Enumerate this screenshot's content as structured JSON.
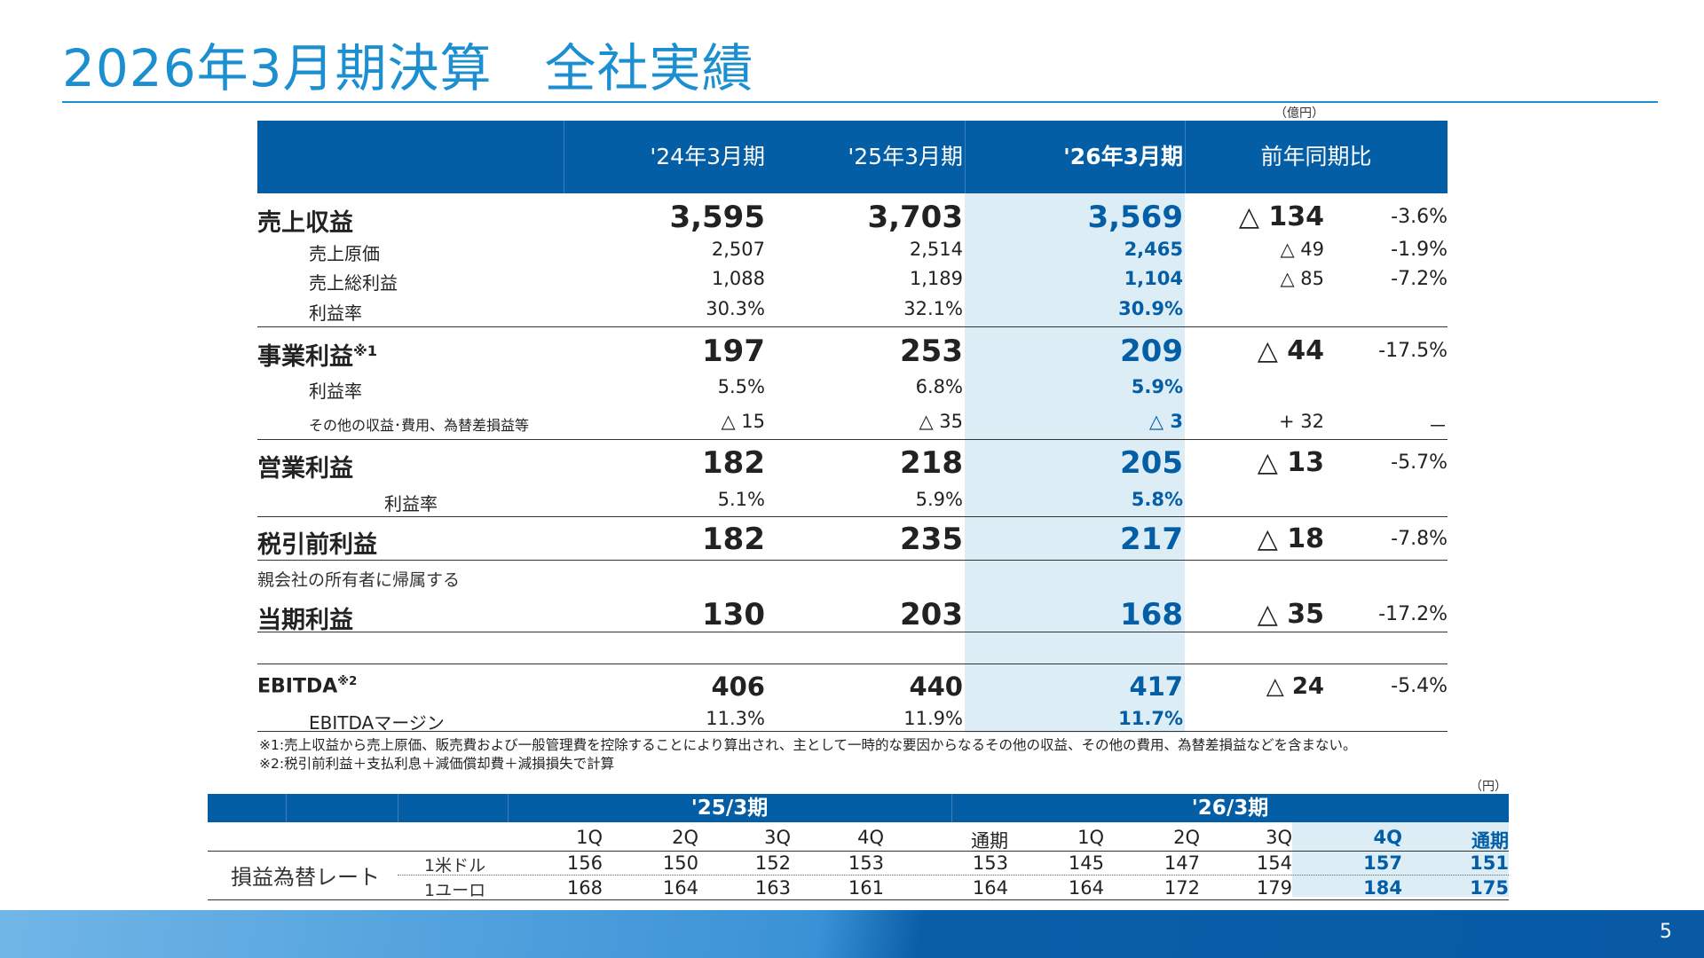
{
  "title": "2026年3月期決算　全社実績",
  "unit_main": "（億円）",
  "unit_fx": "（円）",
  "header": {
    "c1": "'24年3月期",
    "c2": "'25年3月期",
    "c3": "'26年3月期",
    "c4": "前年同期比"
  },
  "rows": {
    "revenue": {
      "label": "売上収益",
      "v1": "3,595",
      "v2": "3,703",
      "v3": "3,569",
      "diff": "△ 134",
      "pct": "-3.6%"
    },
    "cogs": {
      "label": "売上原価",
      "v1": "2,507",
      "v2": "2,514",
      "v3": "2,465",
      "diff": "△ 49",
      "pct": "-1.9%"
    },
    "gross": {
      "label": "売上総利益",
      "v1": "1,088",
      "v2": "1,189",
      "v3": "1,104",
      "diff": "△ 85",
      "pct": "-7.2%"
    },
    "gross_margin": {
      "label": "利益率",
      "v1": "30.3%",
      "v2": "32.1%",
      "v3": "30.9%"
    },
    "business": {
      "label": "事業利益",
      "sup": "※1",
      "v1": "197",
      "v2": "253",
      "v3": "209",
      "diff": "△ 44",
      "pct": "-17.5%"
    },
    "business_margin": {
      "label": "利益率",
      "v1": "5.5%",
      "v2": "6.8%",
      "v3": "5.9%"
    },
    "other": {
      "label": "その他の収益･費用、為替差損益等",
      "v1": "△ 15",
      "v2": "△ 35",
      "v3": "△ 3",
      "diff": "+ 32",
      "pct": "－"
    },
    "operating": {
      "label": "営業利益",
      "v1": "182",
      "v2": "218",
      "v3": "205",
      "diff": "△ 13",
      "pct": "-5.7%"
    },
    "operating_margin": {
      "label": "利益率",
      "v1": "5.1%",
      "v2": "5.9%",
      "v3": "5.8%"
    },
    "pretax": {
      "label": "税引前利益",
      "v1": "182",
      "v2": "235",
      "v3": "217",
      "diff": "△ 18",
      "pct": "-7.8%"
    },
    "net_prefix": "親会社の所有者に帰属する",
    "net": {
      "label": "当期利益",
      "v1": "130",
      "v2": "203",
      "v3": "168",
      "diff": "△ 35",
      "pct": "-17.2%"
    },
    "ebitda": {
      "label": "EBITDA",
      "sup": "※2",
      "v1": "406",
      "v2": "440",
      "v3": "417",
      "diff": "△ 24",
      "pct": "-5.4%"
    },
    "ebitda_margin": {
      "label": "EBITDAマージン",
      "v1": "11.3%",
      "v2": "11.9%",
      "v3": "11.7%"
    }
  },
  "notes": {
    "n1": "※1:売上収益から売上原価、販売費および一般管理費を控除することにより算出され、主として一時的な要因からなるその他の収益、その他の費用、為替差損益などを含まない。",
    "n2": "※2:税引前利益＋支払利息＋減価償却費＋減損損失で計算"
  },
  "fx": {
    "group1": "'25/3期",
    "group2": "'26/3期",
    "cols": [
      "1Q",
      "2Q",
      "3Q",
      "4Q",
      "通期",
      "1Q",
      "2Q",
      "3Q",
      "4Q",
      "通期"
    ],
    "row_group_label": "損益為替レート",
    "usd_label": "1米ドル",
    "eur_label": "1ユーロ",
    "usd": [
      "156",
      "150",
      "152",
      "153",
      "153",
      "145",
      "147",
      "154",
      "157",
      "151"
    ],
    "eur": [
      "168",
      "164",
      "163",
      "161",
      "164",
      "164",
      "172",
      "179",
      "184",
      "175"
    ]
  },
  "page_number": "5",
  "colors": {
    "accent": "#1c8fd0",
    "header_blue": "#045ea6",
    "highlight": "#dcedf6"
  }
}
